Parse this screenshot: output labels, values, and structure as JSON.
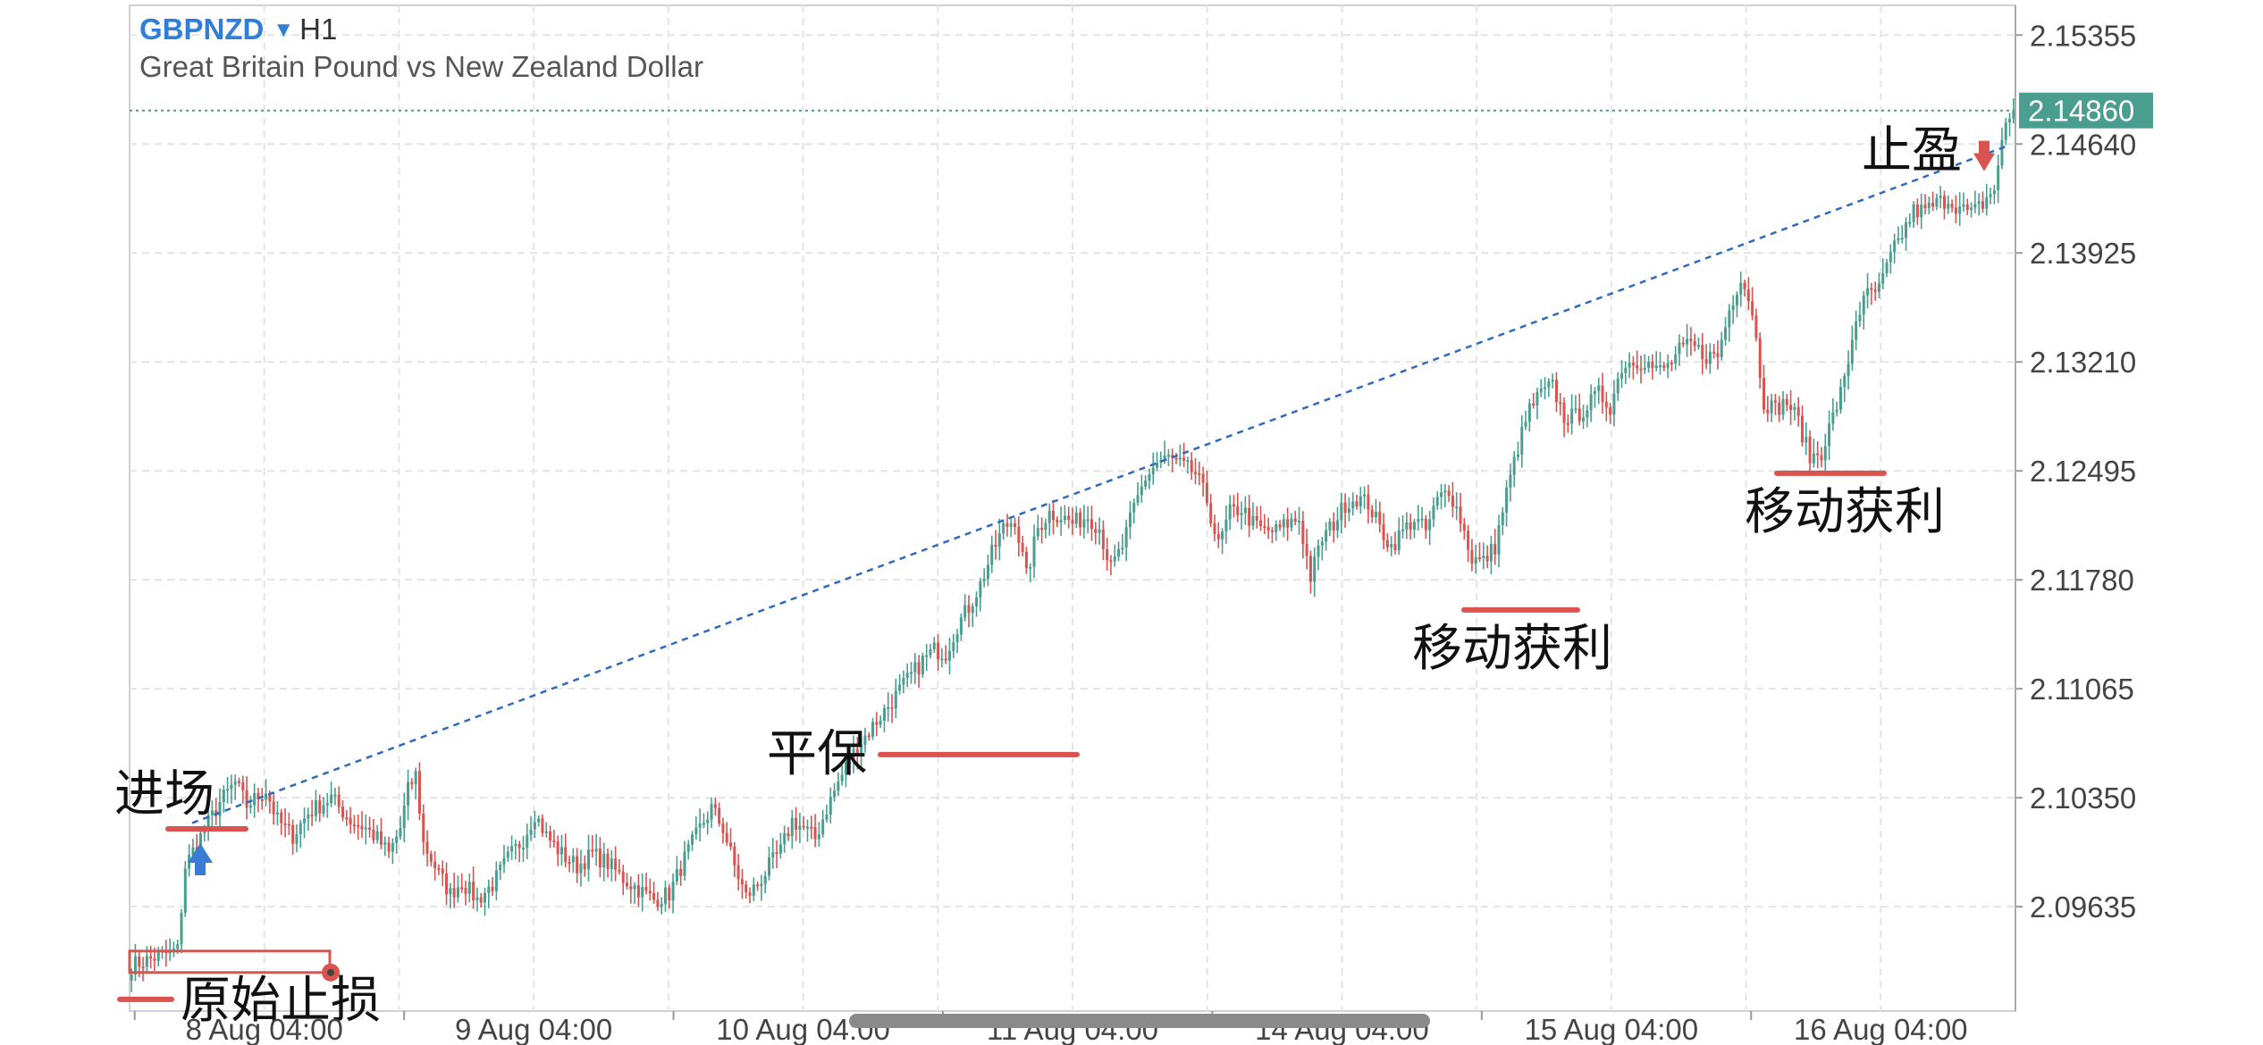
{
  "header": {
    "symbol": "GBPNZD",
    "timeframe": "H1",
    "description": "Great Britain Pound vs New Zealand Dollar"
  },
  "chart_data": {
    "type": "candlestick",
    "x_labels": [
      "8 Aug 04:00",
      "9 Aug 04:00",
      "10 Aug 04:00",
      "11 Aug 04:00",
      "14 Aug 04:00",
      "15 Aug 04:00",
      "16 Aug 04:00"
    ],
    "y_ticks": [
      "2.15355",
      "2.14640",
      "2.13925",
      "2.13210",
      "2.12495",
      "2.11780",
      "2.11065",
      "2.10350",
      "2.09635"
    ],
    "ylim": [
      2.0895,
      2.1555
    ],
    "current_price": 2.1486,
    "current_price_label": "2.14860",
    "colors": {
      "up": "#4a9e8f",
      "down": "#d9534f",
      "trend": "#2e6bbf",
      "annotation": "#d9534f",
      "entry_arrow": "#3a7bd5",
      "grid": "#e4e4e4"
    },
    "candle_points": [
      [
        0,
        2.0925
      ],
      [
        6,
        2.093
      ],
      [
        12,
        2.0935
      ],
      [
        14,
        2.099
      ],
      [
        17,
        2.1005
      ],
      [
        23,
        2.1032
      ],
      [
        27,
        2.1045
      ],
      [
        30,
        2.103
      ],
      [
        35,
        2.104
      ],
      [
        38,
        2.102
      ],
      [
        42,
        2.101
      ],
      [
        46,
        2.1025
      ],
      [
        52,
        2.1035
      ],
      [
        57,
        2.102
      ],
      [
        61,
        2.1015
      ],
      [
        64,
        2.1008
      ],
      [
        67,
        2.0998
      ],
      [
        70,
        2.1015
      ],
      [
        72,
        2.104
      ],
      [
        74,
        2.105
      ],
      [
        76,
        2.1005
      ],
      [
        80,
        2.0985
      ],
      [
        83,
        2.0972
      ],
      [
        86,
        2.098
      ],
      [
        90,
        2.0968
      ],
      [
        94,
        2.0978
      ],
      [
        98,
        2.0995
      ],
      [
        102,
        2.1008
      ],
      [
        105,
        2.1025
      ],
      [
        108,
        2.101
      ],
      [
        112,
        2.0998
      ],
      [
        116,
        2.099
      ],
      [
        120,
        2.0998
      ],
      [
        124,
        2.0992
      ],
      [
        128,
        2.0982
      ],
      [
        132,
        2.0975
      ],
      [
        136,
        2.0968
      ],
      [
        140,
        2.0972
      ],
      [
        144,
        2.0995
      ],
      [
        148,
        2.1015
      ],
      [
        151,
        2.1028
      ],
      [
        154,
        2.1015
      ],
      [
        157,
        2.099
      ],
      [
        160,
        2.097
      ],
      [
        163,
        2.0978
      ],
      [
        166,
        2.099
      ],
      [
        169,
        2.1
      ],
      [
        172,
        2.102
      ],
      [
        175,
        2.1015
      ],
      [
        178,
        2.1008
      ],
      [
        181,
        2.1028
      ],
      [
        184,
        2.1045
      ],
      [
        187,
        2.106
      ],
      [
        190,
        2.1072
      ],
      [
        193,
        2.1082
      ],
      [
        196,
        2.1092
      ],
      [
        199,
        2.1102
      ],
      [
        202,
        2.1112
      ],
      [
        206,
        2.1125
      ],
      [
        209,
        2.1132
      ],
      [
        212,
        2.113
      ],
      [
        215,
        2.1148
      ],
      [
        218,
        2.116
      ],
      [
        221,
        2.1175
      ],
      [
        224,
        2.1195
      ],
      [
        227,
        2.1212
      ],
      [
        230,
        2.1218
      ],
      [
        233,
        2.118
      ],
      [
        236,
        2.1212
      ],
      [
        239,
        2.1222
      ],
      [
        242,
        2.122
      ],
      [
        245,
        2.1215
      ],
      [
        249,
        2.122
      ],
      [
        252,
        2.1212
      ],
      [
        255,
        2.1185
      ],
      [
        258,
        2.12
      ],
      [
        261,
        2.1225
      ],
      [
        264,
        2.1245
      ],
      [
        267,
        2.1255
      ],
      [
        270,
        2.1258
      ],
      [
        274,
        2.1252
      ],
      [
        277,
        2.1248
      ],
      [
        280,
        2.123
      ],
      [
        283,
        2.12
      ],
      [
        286,
        2.1222
      ],
      [
        289,
        2.1225
      ],
      [
        292,
        2.1215
      ],
      [
        295,
        2.121
      ],
      [
        298,
        2.121
      ],
      [
        301,
        2.1215
      ],
      [
        304,
        2.1218
      ],
      [
        307,
        2.118
      ],
      [
        310,
        2.1205
      ],
      [
        313,
        2.1215
      ],
      [
        316,
        2.1228
      ],
      [
        319,
        2.1232
      ],
      [
        322,
        2.1228
      ],
      [
        325,
        2.1212
      ],
      [
        328,
        2.12
      ],
      [
        331,
        2.121
      ],
      [
        334,
        2.1218
      ],
      [
        337,
        2.121
      ],
      [
        340,
        2.123
      ],
      [
        343,
        2.1238
      ],
      [
        346,
        2.1218
      ],
      [
        349,
        2.1192
      ],
      [
        352,
        2.119
      ],
      [
        355,
        2.12
      ],
      [
        358,
        2.1235
      ],
      [
        361,
        2.1265
      ],
      [
        364,
        2.129
      ],
      [
        367,
        2.13
      ],
      [
        370,
        2.1305
      ],
      [
        373,
        2.1285
      ],
      [
        376,
        2.1285
      ],
      [
        379,
        2.1292
      ],
      [
        382,
        2.13
      ],
      [
        385,
        2.1292
      ],
      [
        388,
        2.1318
      ],
      [
        391,
        2.1322
      ],
      [
        394,
        2.1322
      ],
      [
        397,
        2.1315
      ],
      [
        400,
        2.1318
      ],
      [
        403,
        2.1328
      ],
      [
        406,
        2.1332
      ],
      [
        410,
        2.1325
      ],
      [
        413,
        2.1325
      ],
      [
        416,
        2.1355
      ],
      [
        419,
        2.1378
      ],
      [
        422,
        2.1355
      ],
      [
        425,
        2.1295
      ],
      [
        428,
        2.129
      ],
      [
        431,
        2.1295
      ],
      [
        434,
        2.1282
      ],
      [
        437,
        2.1258
      ],
      [
        440,
        2.1262
      ],
      [
        443,
        2.1285
      ],
      [
        446,
        2.1308
      ],
      [
        449,
        2.135
      ],
      [
        452,
        2.1365
      ],
      [
        455,
        2.1368
      ],
      [
        458,
        2.139
      ],
      [
        461,
        2.1405
      ],
      [
        464,
        2.142
      ],
      [
        467,
        2.142
      ],
      [
        470,
        2.1425
      ],
      [
        473,
        2.1428
      ],
      [
        476,
        2.1422
      ],
      [
        479,
        2.1418
      ],
      [
        482,
        2.1425
      ],
      [
        485,
        2.1435
      ],
      [
        488,
        2.1478
      ],
      [
        490,
        2.1486
      ]
    ],
    "trendline": [
      [
        0.0,
        2.0995
      ],
      [
        1.0,
        2.1445
      ]
    ],
    "annotations": [
      {
        "label": "进场",
        "price": 2.0997
      },
      {
        "label": "原始止损",
        "price": 2.0925
      },
      {
        "label": "平保",
        "price": 2.1075
      },
      {
        "label": "移动获利",
        "price": 2.117
      },
      {
        "label": "移动获利",
        "price": 2.1255
      },
      {
        "label": "止盈",
        "price": 2.1445
      }
    ]
  }
}
